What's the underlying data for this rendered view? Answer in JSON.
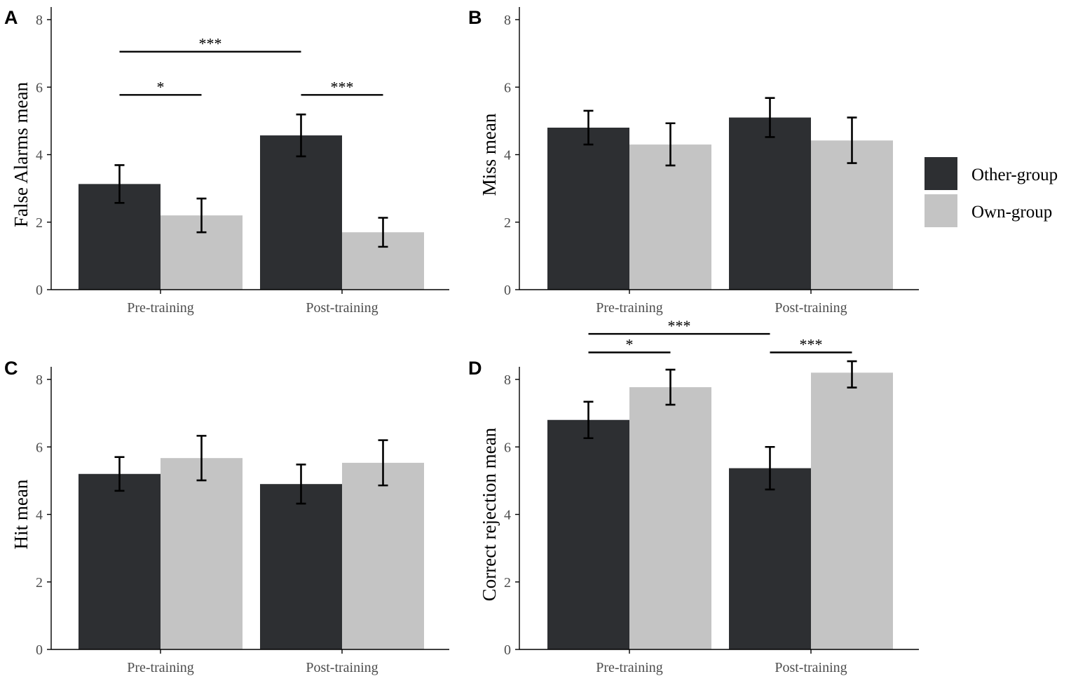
{
  "colors": {
    "other_group": "#2d2f32",
    "own_group": "#c4c4c4"
  },
  "legend": {
    "items": [
      {
        "label": "Other-group",
        "color": "#2d2f32"
      },
      {
        "label": "Own-group",
        "color": "#c4c4c4"
      }
    ],
    "position": "right"
  },
  "chart_data": [
    {
      "type": "bar",
      "panel": "A",
      "ylabel": "False Alarms mean",
      "xlabel": "",
      "categories": [
        "Pre-training",
        "Post-training"
      ],
      "ylim": [
        0,
        8
      ],
      "yticks": [
        0,
        2,
        4,
        6,
        8
      ],
      "series": [
        {
          "name": "Other-group",
          "values": [
            3.13,
            4.57
          ],
          "err_low": [
            2.57,
            3.95
          ],
          "err_high": [
            3.69,
            5.19
          ]
        },
        {
          "name": "Own-group",
          "values": [
            2.2,
            1.7
          ],
          "err_low": [
            1.7,
            1.27
          ],
          "err_high": [
            2.7,
            2.13
          ]
        }
      ],
      "annotations": [
        {
          "label": "***",
          "from": "Other-group|Pre-training",
          "to": "Other-group|Post-training",
          "y": 7.05
        },
        {
          "label": "*",
          "from": "Other-group|Pre-training",
          "to": "Own-group|Pre-training",
          "y": 5.77
        },
        {
          "label": "***",
          "from": "Other-group|Post-training",
          "to": "Own-group|Post-training",
          "y": 5.77
        }
      ]
    },
    {
      "type": "bar",
      "panel": "B",
      "ylabel": "Miss mean",
      "xlabel": "",
      "categories": [
        "Pre-training",
        "Post-training"
      ],
      "ylim": [
        0,
        8
      ],
      "yticks": [
        0,
        2,
        4,
        6,
        8
      ],
      "series": [
        {
          "name": "Other-group",
          "values": [
            4.8,
            5.1
          ],
          "err_low": [
            4.3,
            4.52
          ],
          "err_high": [
            5.3,
            5.68
          ]
        },
        {
          "name": "Own-group",
          "values": [
            4.3,
            4.42
          ],
          "err_low": [
            3.68,
            3.75
          ],
          "err_high": [
            4.93,
            5.1
          ]
        }
      ],
      "annotations": []
    },
    {
      "type": "bar",
      "panel": "C",
      "ylabel": "Hit mean",
      "xlabel": "",
      "categories": [
        "Pre-training",
        "Post-training"
      ],
      "ylim": [
        0,
        8
      ],
      "yticks": [
        0,
        2,
        4,
        6,
        8
      ],
      "series": [
        {
          "name": "Other-group",
          "values": [
            5.2,
            4.9
          ],
          "err_low": [
            4.7,
            4.32
          ],
          "err_high": [
            5.7,
            5.48
          ]
        },
        {
          "name": "Own-group",
          "values": [
            5.67,
            5.53
          ],
          "err_low": [
            5.01,
            4.86
          ],
          "err_high": [
            6.33,
            6.2
          ]
        }
      ],
      "annotations": []
    },
    {
      "type": "bar",
      "panel": "D",
      "ylabel": "Correct rejection mean",
      "xlabel": "",
      "categories": [
        "Pre-training",
        "Post-training"
      ],
      "ylim": [
        0,
        8
      ],
      "yticks": [
        0,
        2,
        4,
        6,
        8
      ],
      "series": [
        {
          "name": "Other-group",
          "values": [
            6.8,
            5.37
          ],
          "err_low": [
            6.26,
            4.74
          ],
          "err_high": [
            7.34,
            6.0
          ]
        },
        {
          "name": "Own-group",
          "values": [
            7.77,
            8.2
          ],
          "err_low": [
            7.25,
            7.76
          ],
          "err_high": [
            8.29,
            8.54
          ]
        }
      ],
      "annotations": [
        {
          "label": "***",
          "from": "Other-group|Pre-training",
          "to": "Other-group|Post-training",
          "y": 9.35
        },
        {
          "label": "*",
          "from": "Other-group|Pre-training",
          "to": "Own-group|Pre-training",
          "y": 8.8
        },
        {
          "label": "***",
          "from": "Other-group|Post-training",
          "to": "Own-group|Post-training",
          "y": 8.8
        }
      ]
    }
  ]
}
